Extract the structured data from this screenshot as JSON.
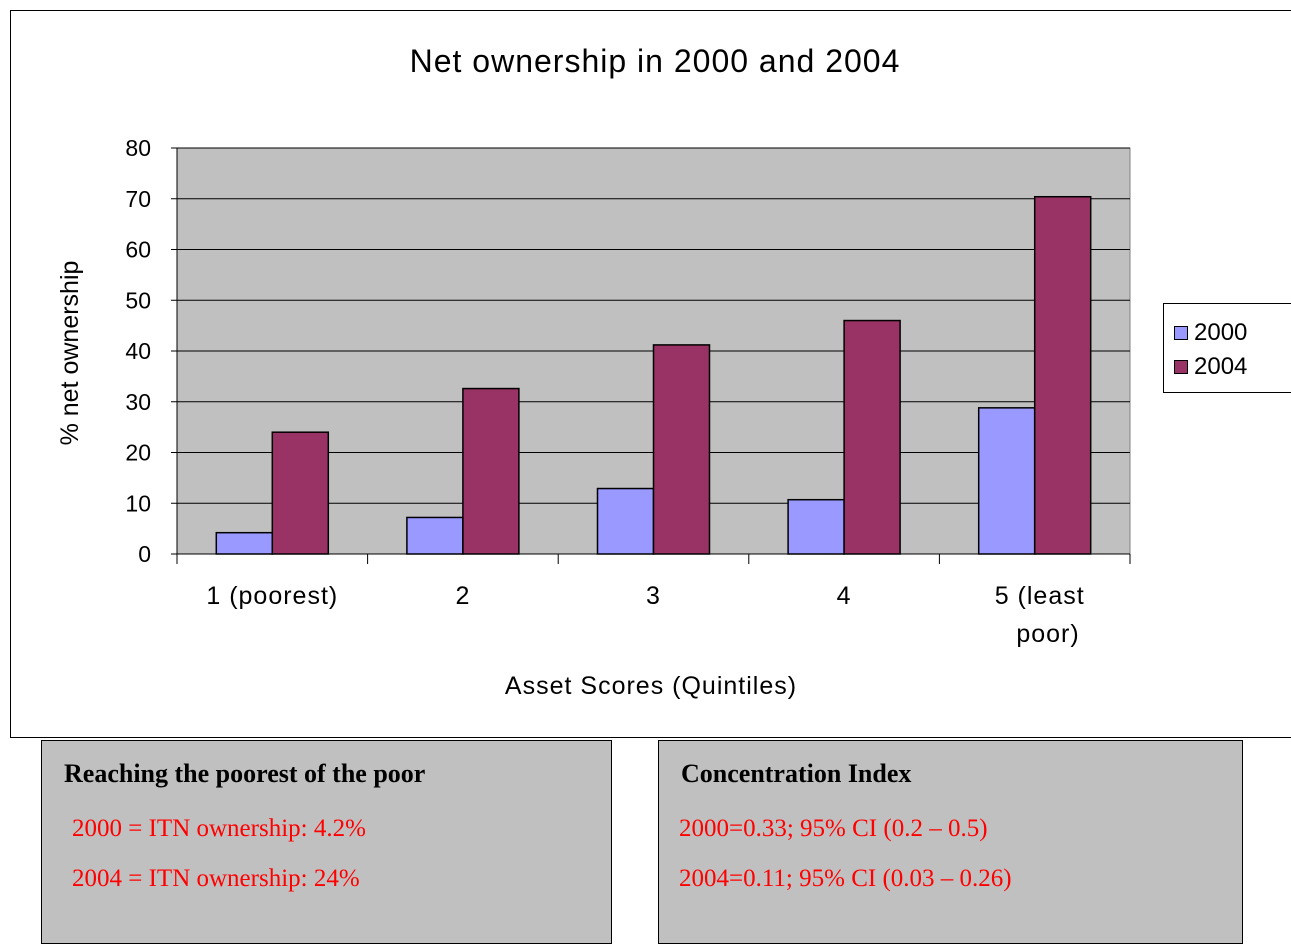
{
  "chart_data": {
    "type": "bar",
    "title": "Net ownership in 2000 and 2004",
    "xlabel": "Asset Scores (Quintiles)",
    "ylabel": "% net ownership",
    "ylim": [
      0,
      80
    ],
    "yticks": [
      0,
      10,
      20,
      30,
      40,
      50,
      60,
      70,
      80
    ],
    "categories": [
      [
        "1 (poorest)"
      ],
      [
        "2"
      ],
      [
        "3"
      ],
      [
        "4"
      ],
      [
        "5 (least",
        "poor)"
      ]
    ],
    "series": [
      {
        "name": "2000",
        "color": "#9999ff",
        "values": [
          4.2,
          7.2,
          12.9,
          10.7,
          28.8
        ]
      },
      {
        "name": "2004",
        "color": "#993366",
        "values": [
          24,
          32.6,
          41.2,
          46,
          70.4
        ]
      }
    ],
    "grid": true,
    "plot_background": "#c0c0c0",
    "legend_position": "right"
  },
  "boxes": {
    "left": {
      "title": "Reaching the poorest of the poor",
      "line1": "2000 = ITN ownership: 4.2%",
      "line2": "2004 = ITN ownership: 24%"
    },
    "right": {
      "title": "Concentration Index",
      "line1": "2000=0.33; 95% CI (0.2 – 0.5)",
      "line2": "2004=0.11; 95% CI (0.03 – 0.26)"
    }
  },
  "colors": {
    "text_accent": "#ff0000",
    "box_background": "#c0c0c0"
  }
}
